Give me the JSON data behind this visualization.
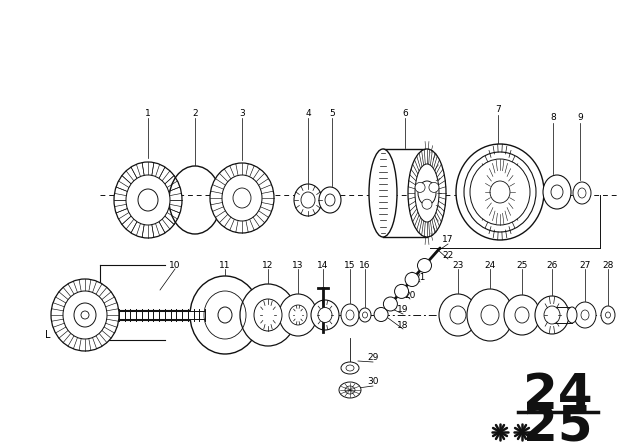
{
  "bg_color": "#ffffff",
  "line_color": "#111111",
  "fig_width": 6.4,
  "fig_height": 4.48,
  "dpi": 100,
  "page_num_top": "24",
  "page_num_bottom": "25"
}
